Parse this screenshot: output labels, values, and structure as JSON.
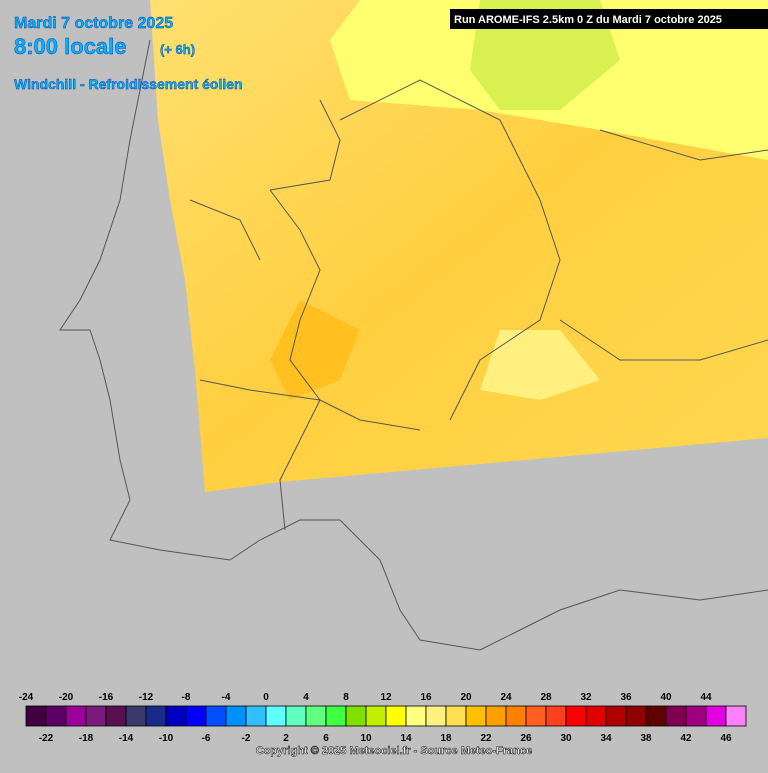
{
  "header": {
    "date": "Mardi 7 octobre 2025",
    "time": "8:00 locale",
    "offset": "(+ 6h)",
    "product": "Windchill - Refroidissement éolien",
    "run": "Run AROME-IFS 2.5km 0 Z du Mardi 7 octobre 2025"
  },
  "legend": {
    "top_labels": [
      "-24",
      "-20",
      "-16",
      "-12",
      "-8",
      "-4",
      "0",
      "4",
      "8",
      "12",
      "16",
      "20",
      "24",
      "28",
      "32",
      "36",
      "40",
      "44"
    ],
    "bottom_labels": [
      "-22",
      "-18",
      "-14",
      "-10",
      "-6",
      "-2",
      "2",
      "6",
      "10",
      "14",
      "18",
      "22",
      "26",
      "30",
      "34",
      "38",
      "42",
      "46"
    ],
    "colors": [
      "#40003f",
      "#5c0066",
      "#9a009a",
      "#7a1a7a",
      "#5a1050",
      "#3a3a6a",
      "#1a2a8a",
      "#0000c0",
      "#0000ff",
      "#0050ff",
      "#0090ff",
      "#30c0ff",
      "#60ffff",
      "#60ffc0",
      "#60ff80",
      "#40ff40",
      "#80e000",
      "#c0f000",
      "#ffff00",
      "#ffff80",
      "#fff080",
      "#ffe050",
      "#ffc000",
      "#ffa000",
      "#ff8000",
      "#ff6020",
      "#ff4020",
      "#ff0000",
      "#e00000",
      "#b00000",
      "#900000",
      "#600000",
      "#800050",
      "#a00080",
      "#e000e0",
      "#ff80ff"
    ]
  },
  "footer": {
    "copyright": "Copyright © 2025 Meteociel.fr - Source Meteo-France"
  }
}
